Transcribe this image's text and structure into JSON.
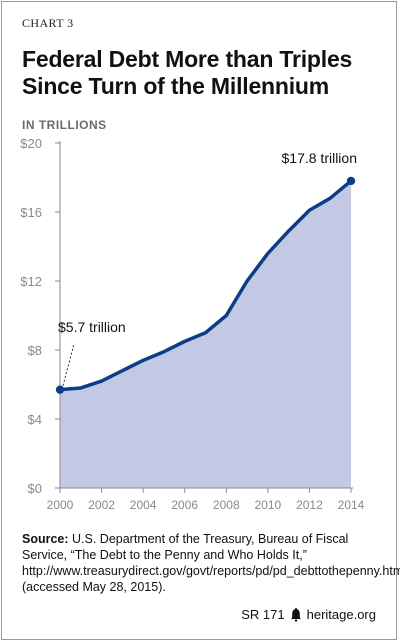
{
  "header": {
    "chart_label": "CHART 3",
    "title_line1": "Federal Debt More than Triples",
    "title_line2": "Since Turn of the Millennium",
    "unit_label": "IN TRILLIONS"
  },
  "chart_data": {
    "type": "area",
    "title": "Federal Debt More than Triples Since Turn of the Millennium",
    "ylabel": "IN TRILLIONS",
    "x": [
      2000,
      2001,
      2002,
      2003,
      2004,
      2005,
      2006,
      2007,
      2008,
      2009,
      2010,
      2011,
      2012,
      2013,
      2014
    ],
    "y": [
      5.7,
      5.8,
      6.2,
      6.8,
      7.4,
      7.9,
      8.5,
      9.0,
      10.0,
      12.0,
      13.6,
      14.9,
      16.1,
      16.8,
      17.8
    ],
    "xlim": [
      2000,
      2014
    ],
    "ylim": [
      0,
      20
    ],
    "xticks": [
      2000,
      2002,
      2004,
      2006,
      2008,
      2010,
      2012,
      2014
    ],
    "yticks": [
      0,
      4,
      8,
      12,
      16,
      20
    ],
    "ytick_labels": [
      "$0",
      "$4",
      "$8",
      "$12",
      "$16",
      "$20"
    ],
    "grid": false,
    "annotations": [
      {
        "text": "$5.7 trillion",
        "x": 2000,
        "y": 5.7
      },
      {
        "text": "$17.8 trillion",
        "x": 2014,
        "y": 17.8
      }
    ],
    "colors": {
      "line": "#0b3e87",
      "fill": "#c3c9e5",
      "axis": "#8a8a8a",
      "tick_text": "#8a8a8a"
    }
  },
  "source": {
    "label": "Source:",
    "text": " U.S. Department of the Treasury, Bureau of Fiscal Service, “The Debt to the Penny and Who Holds It,” http://www.treasurydirect.gov/govt/reports/pd/pd_debttothepenny.htm (accessed May 28, 2015)."
  },
  "footer": {
    "report_id": "SR 171",
    "site": "heritage.org",
    "icon": "liberty-bell-icon"
  }
}
